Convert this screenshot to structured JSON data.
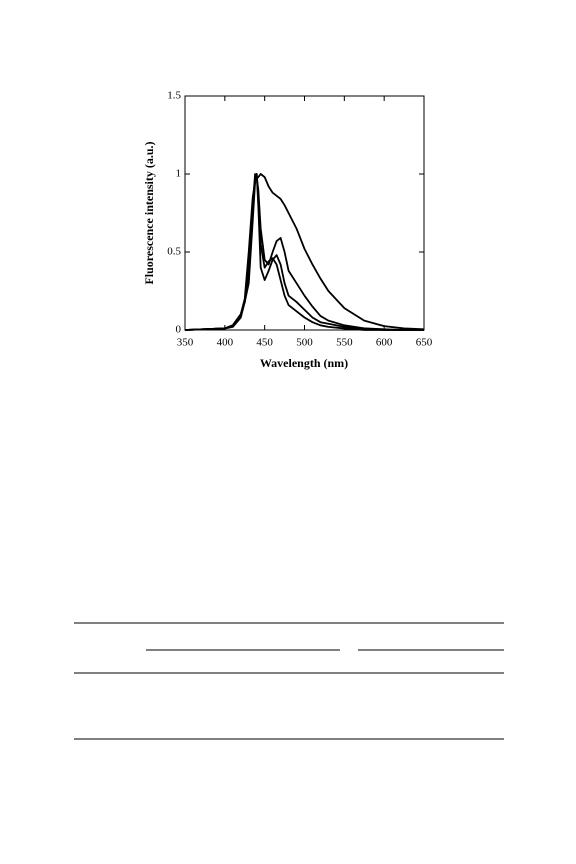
{
  "chart_data": {
    "type": "line",
    "xlabel": "Wavelength (nm)",
    "ylabel": "Fluorescence intensity (a.u.)",
    "x": [
      350,
      400,
      410,
      420,
      425,
      430,
      435,
      438,
      440,
      442,
      445,
      450,
      455,
      460,
      465,
      470,
      475,
      480,
      490,
      500,
      510,
      520,
      530,
      550,
      575,
      600,
      625,
      650
    ],
    "series": [
      {
        "color": "#000000",
        "values": [
          0,
          0.01,
          0.03,
          0.1,
          0.2,
          0.5,
          0.85,
          0.95,
          0.97,
          0.98,
          1.0,
          0.98,
          0.92,
          0.88,
          0.86,
          0.84,
          0.8,
          0.75,
          0.65,
          0.52,
          0.42,
          0.33,
          0.25,
          0.14,
          0.06,
          0.025,
          0.01,
          0.005
        ]
      },
      {
        "color": "#000000",
        "values": [
          0,
          0.01,
          0.03,
          0.1,
          0.18,
          0.4,
          0.8,
          1.0,
          0.98,
          0.9,
          0.65,
          0.45,
          0.42,
          0.5,
          0.57,
          0.59,
          0.5,
          0.38,
          0.3,
          0.22,
          0.15,
          0.09,
          0.06,
          0.03,
          0.01,
          0.005,
          0,
          0
        ]
      },
      {
        "color": "#000000",
        "values": [
          0,
          0.01,
          0.03,
          0.1,
          0.18,
          0.35,
          0.75,
          0.98,
          1.0,
          0.8,
          0.4,
          0.32,
          0.38,
          0.45,
          0.48,
          0.42,
          0.3,
          0.22,
          0.18,
          0.13,
          0.08,
          0.05,
          0.04,
          0.02,
          0.01,
          0,
          0,
          0
        ]
      },
      {
        "color": "#000000",
        "values": [
          0,
          0.01,
          0.02,
          0.08,
          0.18,
          0.3,
          0.7,
          0.95,
          1.0,
          0.85,
          0.55,
          0.4,
          0.44,
          0.46,
          0.42,
          0.32,
          0.22,
          0.16,
          0.12,
          0.08,
          0.05,
          0.03,
          0.02,
          0.01,
          0,
          0,
          0,
          0
        ]
      }
    ],
    "xlim": [
      350,
      650
    ],
    "xticks": [
      350,
      400,
      450,
      500,
      550,
      600,
      650
    ],
    "ylim": [
      0,
      1.5
    ],
    "yticks": [
      0,
      0.5,
      1,
      1.5
    ],
    "grid": false
  }
}
